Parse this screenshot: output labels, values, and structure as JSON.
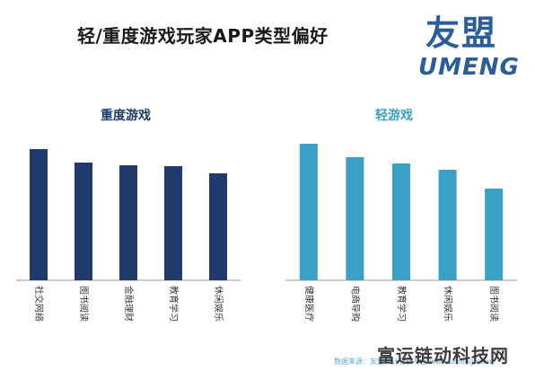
{
  "header": {
    "title": "轻/重度游戏玩家APP类型偏好"
  },
  "logo": {
    "cn": "友盟",
    "en": "UMENG",
    "color": "#2a5d9a"
  },
  "chart_data": [
    {
      "type": "bar",
      "title": "重度游戏",
      "categories": [
        "社交网络",
        "图书阅读",
        "金融理财",
        "教育学习",
        "休闲娱乐"
      ],
      "values": [
        146,
        131,
        128,
        127,
        119
      ],
      "ylim": [
        0,
        160
      ],
      "grid": false,
      "color": "#1f3b6e"
    },
    {
      "type": "bar",
      "title": "轻游戏",
      "categories": [
        "健康医疗",
        "电商导购",
        "教育学习",
        "休闲娱乐",
        "图书阅读"
      ],
      "values": [
        152,
        137,
        130,
        123,
        102
      ],
      "ylim": [
        0,
        160
      ],
      "grid": false,
      "color": "#3aa0c5"
    }
  ],
  "footer": {
    "source": "数据来源：友盟统计分析平台 www.umeng.com"
  },
  "watermark": {
    "text": "富运链动科技网"
  }
}
